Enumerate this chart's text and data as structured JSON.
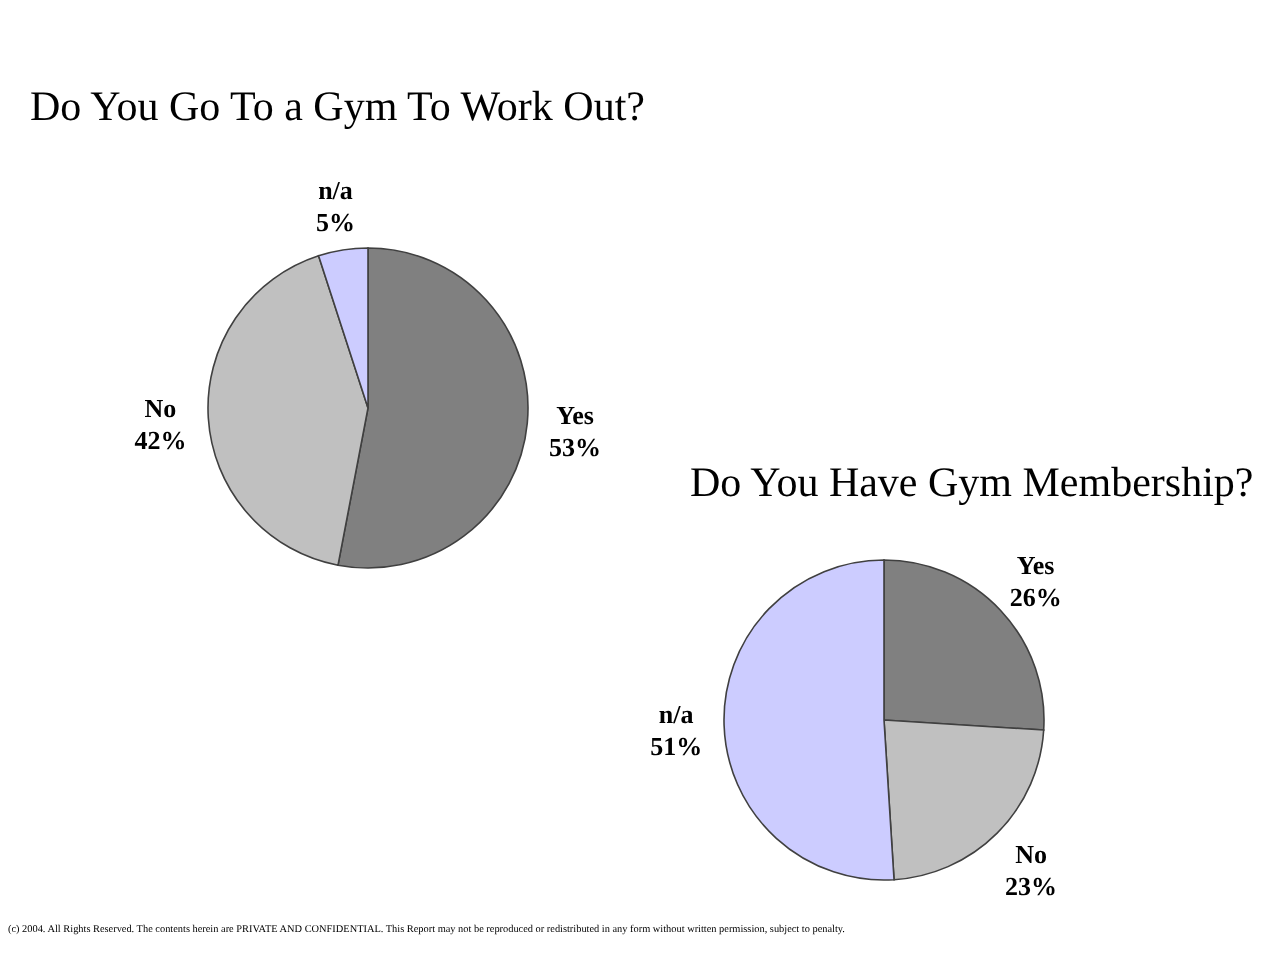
{
  "chart_data": [
    {
      "type": "pie",
      "title": "Do You Go To a Gym To Work Out?",
      "categories": [
        "Yes",
        "No",
        "n/a"
      ],
      "values": [
        53,
        42,
        5
      ],
      "colors": [
        "#808080",
        "#c0c0c0",
        "#ccccff"
      ],
      "value_labels": [
        "53%",
        "42%",
        "5%"
      ]
    },
    {
      "type": "pie",
      "title": "Do You Have Gym Membership?",
      "categories": [
        "Yes",
        "No",
        "n/a"
      ],
      "values": [
        26,
        23,
        51
      ],
      "colors": [
        "#808080",
        "#c0c0c0",
        "#ccccff"
      ],
      "value_labels": [
        "26%",
        "23%",
        "51%"
      ],
      "annotations": [
        "(c) 2004. All Rights Reserved. The contents herein are PRIVATE AND CONFIDENTIAL. This Report may not be reproduced or redistributed in any form without written permission, subject to penalty."
      ]
    }
  ]
}
